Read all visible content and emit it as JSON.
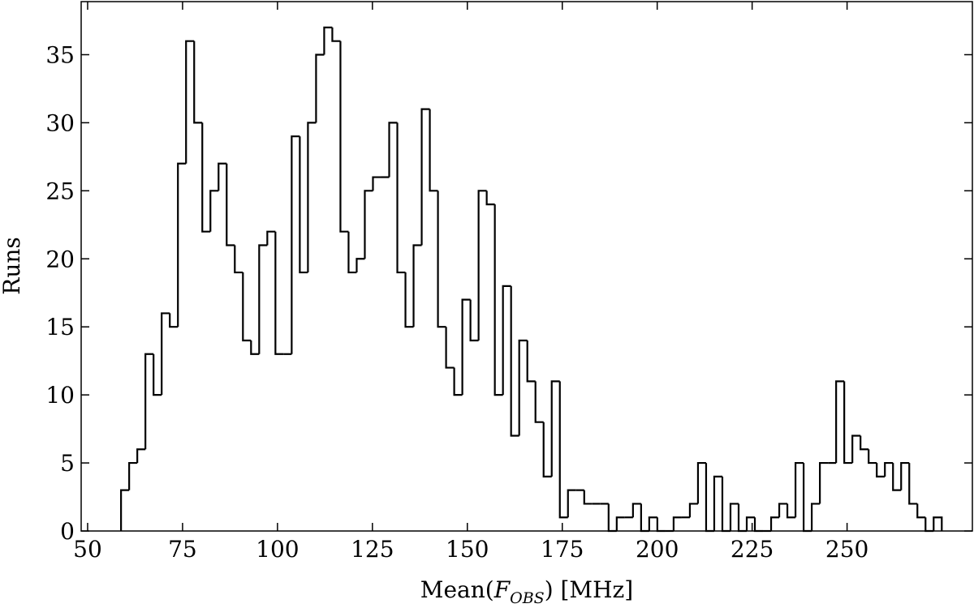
{
  "chart_data": {
    "type": "histogram",
    "xlabel": {
      "prefix": "Mean(",
      "symbol": "F",
      "subscript": "OBS",
      "suffix": ") [MHz]"
    },
    "ylabel": "Runs",
    "color": "#000000",
    "bins": [
      58.8,
      60.94,
      63.08,
      65.22,
      67.36,
      69.5,
      71.64,
      73.78,
      75.92,
      78.06,
      80.2,
      82.34,
      84.48,
      86.62,
      88.76,
      90.9,
      93.04,
      95.18,
      97.32,
      99.46,
      101.6,
      103.74,
      105.88,
      108.02,
      110.16,
      112.3,
      114.44,
      116.58,
      118.72,
      120.86,
      123,
      125.14,
      127.28,
      129.42,
      131.56,
      133.7,
      135.84,
      137.98,
      140.12,
      142.26,
      144.4,
      146.54,
      148.68,
      150.82,
      152.96,
      155.1,
      157.24,
      159.38,
      161.52,
      163.66,
      165.8,
      167.94,
      170.08,
      172.22,
      174.36,
      176.5,
      178.64,
      180.78,
      182.92,
      185.06,
      187.2,
      189.34,
      191.48,
      193.62,
      195.76,
      197.9,
      200.04,
      202.18,
      204.32,
      206.46,
      208.6,
      210.74,
      212.88,
      215.02,
      217.16,
      219.3,
      221.44,
      223.58,
      225.72,
      227.86,
      230,
      232.14,
      234.28,
      236.42,
      238.56,
      240.7,
      242.84,
      244.98,
      247.12,
      249.26,
      251.4,
      253.54,
      255.68,
      257.82,
      259.96,
      262.1,
      264.24,
      266.38,
      268.52,
      270.66,
      272.8,
      274.94
    ],
    "counts": [
      3,
      5,
      6,
      13,
      10,
      16,
      15,
      27,
      36,
      30,
      22,
      25,
      27,
      21,
      19,
      14,
      13,
      21,
      22,
      13,
      13,
      29,
      19,
      30,
      35,
      37,
      36,
      22,
      19,
      20,
      25,
      26,
      26,
      30,
      19,
      15,
      21,
      31,
      25,
      15,
      12,
      10,
      17,
      14,
      25,
      24,
      10,
      18,
      7,
      14,
      11,
      8,
      4,
      11,
      1,
      3,
      3,
      2,
      2,
      2,
      0,
      1,
      1,
      2,
      0,
      1,
      0,
      0,
      1,
      1,
      2,
      5,
      0,
      4,
      0,
      2,
      0,
      1,
      0,
      0,
      1,
      2,
      1,
      5,
      0,
      2,
      5,
      5,
      11,
      5,
      7,
      6,
      5,
      4,
      5,
      3,
      5,
      2,
      1,
      0,
      1
    ],
    "xlim": [
      48.3,
      283
    ],
    "ylim": [
      0,
      38.9
    ],
    "xticks": [
      50,
      75,
      100,
      125,
      150,
      175,
      200,
      225,
      250
    ],
    "yticks": [
      0,
      5,
      10,
      15,
      20,
      25,
      30,
      35
    ]
  }
}
